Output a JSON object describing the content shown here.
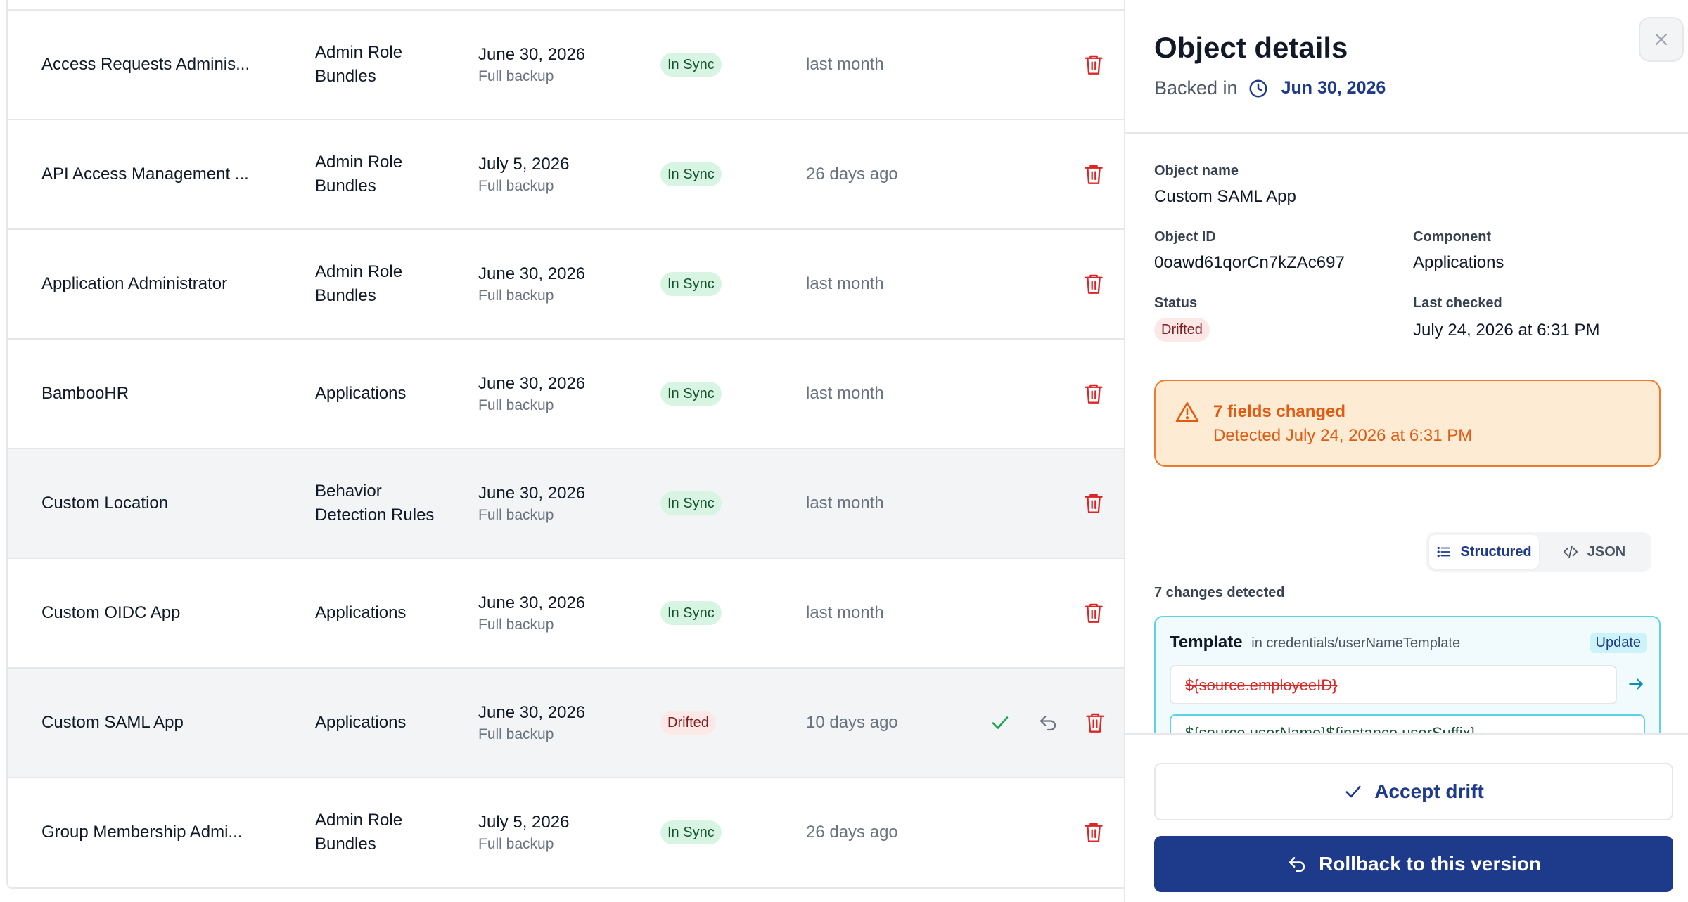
{
  "colors": {
    "accent": "#1e3a8a",
    "sync_badge_bg": "#d8f5e3",
    "drift_badge_bg": "#fde8e8",
    "warning": "#e05a12",
    "delete_icon": "#dc2626",
    "accept_icon": "#16a34a"
  },
  "table": {
    "rows": [
      {
        "name": "Access Requests Adminis...",
        "component": "Admin Role Bundles",
        "date": "June 30, 2026",
        "backup_type": "Full backup",
        "status": "In Sync",
        "last_checked": "last month"
      },
      {
        "name": "API Access Management ...",
        "component": "Admin Role Bundles",
        "date": "July 5, 2026",
        "backup_type": "Full backup",
        "status": "In Sync",
        "last_checked": "26 days ago"
      },
      {
        "name": "Application Administrator",
        "component": "Admin Role Bundles",
        "date": "June 30, 2026",
        "backup_type": "Full backup",
        "status": "In Sync",
        "last_checked": "last month"
      },
      {
        "name": "BambooHR",
        "component": "Applications",
        "date": "June 30, 2026",
        "backup_type": "Full backup",
        "status": "In Sync",
        "last_checked": "last month"
      },
      {
        "name": "Custom Location",
        "component": "Behavior Detection Rules",
        "date": "June 30, 2026",
        "backup_type": "Full backup",
        "status": "In Sync",
        "last_checked": "last month"
      },
      {
        "name": "Custom OIDC App",
        "component": "Applications",
        "date": "June 30, 2026",
        "backup_type": "Full backup",
        "status": "In Sync",
        "last_checked": "last month"
      },
      {
        "name": "Custom SAML App",
        "component": "Applications",
        "date": "June 30, 2026",
        "backup_type": "Full backup",
        "status": "Drifted",
        "last_checked": "10 days ago"
      },
      {
        "name": "Group Membership Admi...",
        "component": "Admin Role Bundles",
        "date": "July 5, 2026",
        "backup_type": "Full backup",
        "status": "In Sync",
        "last_checked": "26 days ago"
      }
    ]
  },
  "detail": {
    "title": "Object details",
    "backed_in_label": "Backed in",
    "backed_in_date": "Jun 30, 2026",
    "object_name_label": "Object name",
    "object_name": "Custom SAML App",
    "object_id_label": "Object ID",
    "object_id": "0oawd61qorCn7kZAc697",
    "component_label": "Component",
    "component": "Applications",
    "status_label": "Status",
    "status": "Drifted",
    "last_checked_label": "Last checked",
    "last_checked": "July 24, 2026 at 6:31 PM",
    "alert_title": "7 fields changed",
    "alert_sub": "Detected July 24, 2026 at 6:31 PM",
    "view_toggle": {
      "structured": "Structured",
      "json": "JSON"
    },
    "changes_title": "7 changes detected",
    "change": {
      "field": "Template",
      "path": "in credentials/userNameTemplate",
      "type": "Update",
      "old_value": "${source.employeeID}",
      "new_value": "${source.userName}${instance.userSuffix}"
    },
    "accept_label": "Accept drift",
    "rollback_label": "Rollback to this version"
  }
}
